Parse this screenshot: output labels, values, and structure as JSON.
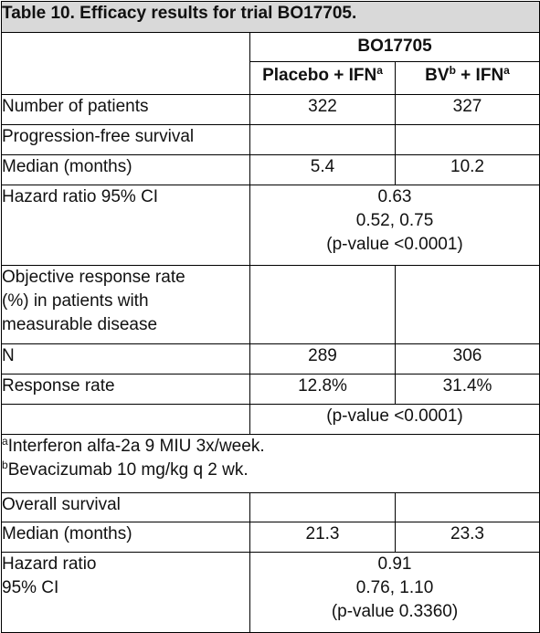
{
  "table": {
    "caption": "Table 10. Efficacy results for trial BO17705.",
    "trial_header": "BO17705",
    "columns": [
      {
        "name": "Placebo + IFN",
        "sup": "a"
      },
      {
        "name_part1": "BV",
        "sup1": "b",
        "name_part2": " + IFN",
        "sup2": "a"
      }
    ],
    "rows": {
      "patients": {
        "label": "Number of patients",
        "values": [
          "322",
          "327"
        ]
      },
      "pfs": {
        "label": "Progression-free survival"
      },
      "pfs_median": {
        "label": "Median (months)",
        "values": [
          "5.4",
          "10.2"
        ]
      },
      "pfs_hr": {
        "label": "Hazard ratio 95% CI",
        "lines": [
          "0.63",
          "0.52, 0.75",
          "(p-value <0.0001)"
        ]
      },
      "orr": {
        "label_lines": [
          "Objective response rate",
          "(%) in patients with",
          "measurable disease"
        ]
      },
      "orr_n": {
        "label": "N",
        "values": [
          "289",
          "306"
        ]
      },
      "orr_rate": {
        "label": "Response rate",
        "values": [
          "12.8%",
          "31.4%"
        ]
      },
      "orr_p": {
        "text": "(p-value <0.0001)"
      },
      "footnotes": [
        {
          "mark": "a",
          "text": "Interferon alfa-2a 9 MIU 3x/week."
        },
        {
          "mark": "b",
          "text": "Bevacizumab 10 mg/kg q 2 wk."
        }
      ],
      "os": {
        "label": "Overall survival"
      },
      "os_median": {
        "label": "Median (months)",
        "values": [
          "21.3",
          "23.3"
        ]
      },
      "os_hr": {
        "label_lines": [
          "Hazard ratio",
          "95% CI"
        ],
        "lines": [
          "0.91",
          "0.76, 1.10",
          "(p-value 0.3360)"
        ]
      }
    }
  }
}
